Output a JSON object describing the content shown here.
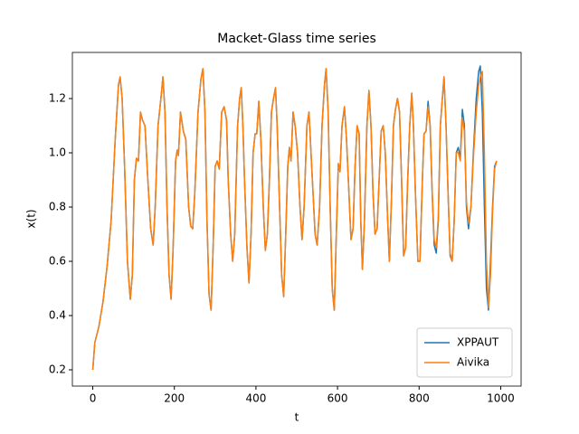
{
  "chart_data": {
    "type": "line",
    "title": "Macket-Glass time series",
    "x_label": "t",
    "y_label": "x(t)",
    "x": [
      0,
      5,
      15,
      25,
      35,
      45,
      55,
      63,
      67,
      72,
      78,
      85,
      92,
      97,
      102,
      107,
      112,
      117,
      122,
      128,
      135,
      142,
      148,
      153,
      160,
      167,
      172,
      177,
      182,
      187,
      192,
      197,
      203,
      207,
      210,
      215,
      222,
      228,
      235,
      240,
      245,
      250,
      258,
      265,
      270,
      275,
      280,
      285,
      290,
      295,
      300,
      305,
      310,
      316,
      322,
      328,
      332,
      338,
      343,
      348,
      355,
      360,
      364,
      368,
      372,
      378,
      383,
      388,
      393,
      398,
      402,
      407,
      412,
      418,
      423,
      428,
      433,
      438,
      443,
      448,
      452,
      458,
      463,
      468,
      473,
      478,
      482,
      486,
      491,
      496,
      502,
      508,
      513,
      518,
      525,
      530,
      535,
      540,
      545,
      550,
      556,
      562,
      568,
      572,
      577,
      582,
      587,
      592,
      597,
      602,
      606,
      611,
      617,
      622,
      628,
      633,
      638,
      643,
      648,
      653,
      657,
      661,
      666,
      672,
      677,
      682,
      687,
      692,
      697,
      702,
      707,
      712,
      717,
      723,
      727,
      732,
      737,
      742,
      747,
      752,
      757,
      762,
      767,
      772,
      777,
      782,
      786,
      791,
      797,
      802,
      808,
      812,
      817,
      822,
      827,
      832,
      837,
      842,
      847,
      852,
      857,
      861,
      866,
      871,
      876,
      881,
      886,
      891,
      896,
      901,
      906,
      911,
      916,
      921,
      927,
      933,
      940,
      946,
      950,
      955,
      960,
      965,
      970,
      975,
      980,
      985,
      990
    ],
    "series": [
      {
        "name": "XPPAUT",
        "color": "#1f77b4",
        "values": [
          0.2,
          0.3,
          0.36,
          0.45,
          0.58,
          0.75,
          1.05,
          1.25,
          1.28,
          1.2,
          0.95,
          0.6,
          0.46,
          0.55,
          0.9,
          0.98,
          0.97,
          1.15,
          1.12,
          1.1,
          0.9,
          0.72,
          0.66,
          0.8,
          1.1,
          1.2,
          1.28,
          1.15,
          0.8,
          0.55,
          0.46,
          0.65,
          0.97,
          1.01,
          0.99,
          1.15,
          1.08,
          1.05,
          0.8,
          0.73,
          0.72,
          0.85,
          1.15,
          1.27,
          1.31,
          1.15,
          0.75,
          0.48,
          0.42,
          0.65,
          0.95,
          0.97,
          0.94,
          1.15,
          1.17,
          1.12,
          0.9,
          0.7,
          0.6,
          0.7,
          1.1,
          1.2,
          1.24,
          1.1,
          0.9,
          0.65,
          0.52,
          0.7,
          1.0,
          1.07,
          1.07,
          1.19,
          1.05,
          0.8,
          0.64,
          0.7,
          0.9,
          1.15,
          1.2,
          1.24,
          1.1,
          0.8,
          0.55,
          0.47,
          0.7,
          0.95,
          1.02,
          0.97,
          1.15,
          1.1,
          1.0,
          0.8,
          0.68,
          0.8,
          1.1,
          1.15,
          1.0,
          0.85,
          0.7,
          0.66,
          0.8,
          1.1,
          1.25,
          1.31,
          1.15,
          0.8,
          0.5,
          0.42,
          0.7,
          0.96,
          0.93,
          1.1,
          1.17,
          1.05,
          0.85,
          0.68,
          0.72,
          0.95,
          1.1,
          1.07,
          0.75,
          0.57,
          0.75,
          1.1,
          1.23,
          1.1,
          0.85,
          0.7,
          0.72,
          0.9,
          1.08,
          1.1,
          1.0,
          0.75,
          0.6,
          0.82,
          1.1,
          1.16,
          1.2,
          1.15,
          0.9,
          0.62,
          0.65,
          0.9,
          1.1,
          1.22,
          1.1,
          0.85,
          0.6,
          0.6,
          0.9,
          1.07,
          1.08,
          1.19,
          1.1,
          0.85,
          0.66,
          0.63,
          0.75,
          1.1,
          1.2,
          1.28,
          1.1,
          0.85,
          0.62,
          0.6,
          0.75,
          1.0,
          1.02,
          0.98,
          1.16,
          1.1,
          0.8,
          0.72,
          0.8,
          1.0,
          1.2,
          1.3,
          1.32,
          1.15,
          0.8,
          0.5,
          0.42,
          0.6,
          0.8,
          0.95,
          0.97
        ]
      },
      {
        "name": "Aivika",
        "color": "#ff7f0e",
        "values": [
          0.2,
          0.3,
          0.36,
          0.45,
          0.58,
          0.75,
          1.05,
          1.25,
          1.28,
          1.2,
          0.95,
          0.6,
          0.46,
          0.55,
          0.9,
          0.98,
          0.97,
          1.15,
          1.12,
          1.1,
          0.9,
          0.72,
          0.66,
          0.8,
          1.1,
          1.2,
          1.28,
          1.15,
          0.8,
          0.55,
          0.46,
          0.65,
          0.97,
          1.01,
          0.99,
          1.15,
          1.08,
          1.05,
          0.8,
          0.73,
          0.72,
          0.85,
          1.15,
          1.27,
          1.31,
          1.15,
          0.75,
          0.48,
          0.42,
          0.65,
          0.95,
          0.97,
          0.94,
          1.15,
          1.17,
          1.12,
          0.9,
          0.7,
          0.6,
          0.7,
          1.1,
          1.2,
          1.24,
          1.1,
          0.9,
          0.65,
          0.52,
          0.7,
          1.0,
          1.07,
          1.07,
          1.19,
          1.05,
          0.8,
          0.64,
          0.7,
          0.9,
          1.15,
          1.2,
          1.24,
          1.1,
          0.8,
          0.55,
          0.47,
          0.7,
          0.95,
          1.02,
          0.97,
          1.15,
          1.1,
          1.0,
          0.8,
          0.68,
          0.8,
          1.1,
          1.15,
          1.0,
          0.85,
          0.7,
          0.66,
          0.8,
          1.1,
          1.25,
          1.31,
          1.15,
          0.8,
          0.5,
          0.42,
          0.7,
          0.96,
          0.93,
          1.1,
          1.17,
          1.05,
          0.85,
          0.68,
          0.72,
          0.95,
          1.1,
          1.07,
          0.75,
          0.57,
          0.75,
          1.1,
          1.23,
          1.1,
          0.85,
          0.7,
          0.72,
          0.9,
          1.08,
          1.1,
          1.0,
          0.75,
          0.6,
          0.82,
          1.1,
          1.16,
          1.2,
          1.15,
          0.9,
          0.62,
          0.65,
          0.9,
          1.1,
          1.22,
          1.1,
          0.85,
          0.6,
          0.6,
          0.9,
          1.07,
          1.08,
          1.17,
          1.1,
          0.86,
          0.68,
          0.65,
          0.76,
          1.1,
          1.2,
          1.28,
          1.1,
          0.85,
          0.63,
          0.6,
          0.75,
          1.0,
          1.0,
          0.97,
          1.13,
          1.08,
          0.82,
          0.74,
          0.8,
          0.98,
          1.15,
          1.25,
          1.28,
          1.3,
          1.0,
          0.6,
          0.43,
          0.55,
          0.78,
          0.94,
          0.97
        ]
      }
    ],
    "xlim": [
      -50,
      1050
    ],
    "ylim": [
      0.14,
      1.37
    ],
    "xticks": [
      0,
      200,
      400,
      600,
      800,
      1000
    ],
    "yticks": [
      0.2,
      0.4,
      0.6,
      0.8,
      {
        "value": 1,
        "label": "1.0"
      },
      1.2
    ],
    "legend": "lower right"
  }
}
